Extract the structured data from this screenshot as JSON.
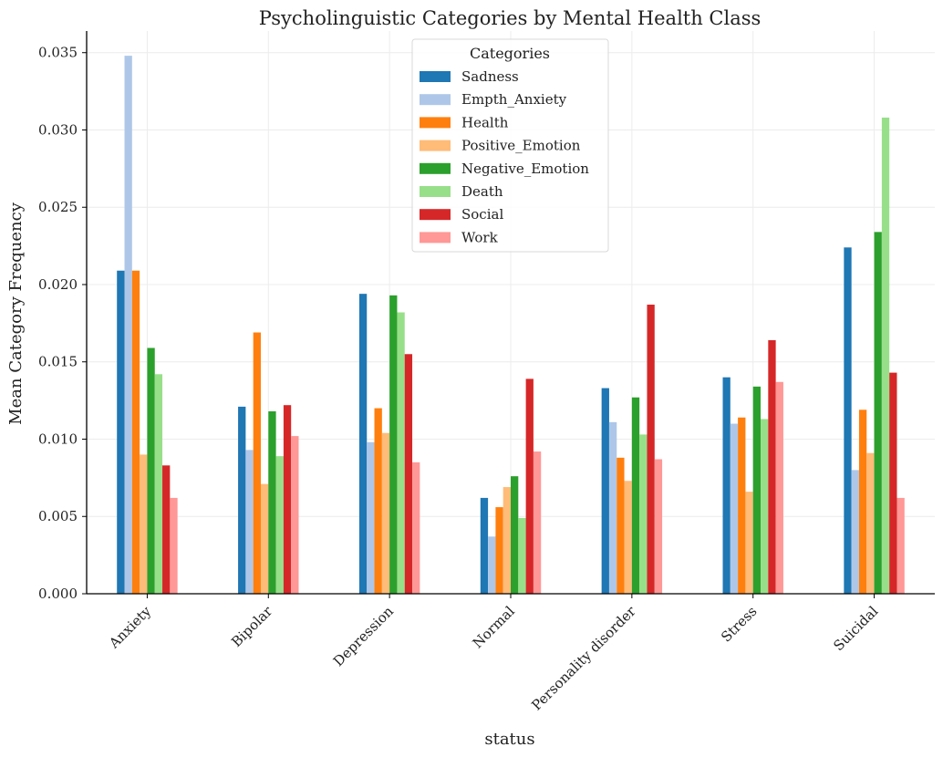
{
  "chart_data": {
    "type": "bar",
    "title": "Psycholinguistic Categories by Mental Health Class",
    "xlabel": "status",
    "ylabel": "Mean Category Frequency",
    "ylim": [
      0,
      0.0364
    ],
    "yticks": [
      "0.000",
      "0.005",
      "0.010",
      "0.015",
      "0.020",
      "0.025",
      "0.030",
      "0.035"
    ],
    "grid": true,
    "legend": {
      "title": "Categories",
      "placement": "top-center"
    },
    "categories": [
      "Anxiety",
      "Bipolar",
      "Depression",
      "Normal",
      "Personality disorder",
      "Stress",
      "Suicidal"
    ],
    "series": [
      {
        "name": "Sadness",
        "color": "#1f77b4",
        "values": [
          0.0209,
          0.0121,
          0.0194,
          0.0062,
          0.0133,
          0.014,
          0.0224
        ]
      },
      {
        "name": "Empth_Anxiety",
        "color": "#aec7e8",
        "values": [
          0.0348,
          0.0093,
          0.0098,
          0.0037,
          0.0111,
          0.011,
          0.008
        ]
      },
      {
        "name": "Health",
        "color": "#ff7f0e",
        "values": [
          0.0209,
          0.0169,
          0.012,
          0.0056,
          0.0088,
          0.0114,
          0.0119
        ]
      },
      {
        "name": "Positive_Emotion",
        "color": "#ffbb78",
        "values": [
          0.009,
          0.0071,
          0.0104,
          0.0069,
          0.0073,
          0.0066,
          0.0091
        ]
      },
      {
        "name": "Negative_Emotion",
        "color": "#2ca02c",
        "values": [
          0.0159,
          0.0118,
          0.0193,
          0.0076,
          0.0127,
          0.0134,
          0.0234
        ]
      },
      {
        "name": "Death",
        "color": "#98df8a",
        "values": [
          0.0142,
          0.0089,
          0.0182,
          0.0049,
          0.0103,
          0.0113,
          0.0308
        ]
      },
      {
        "name": "Social",
        "color": "#d62728",
        "values": [
          0.0083,
          0.0122,
          0.0155,
          0.0139,
          0.0187,
          0.0164,
          0.0143
        ]
      },
      {
        "name": "Work",
        "color": "#ff9896",
        "values": [
          0.0062,
          0.0102,
          0.0085,
          0.0092,
          0.0087,
          0.0137,
          0.0062
        ]
      }
    ]
  }
}
